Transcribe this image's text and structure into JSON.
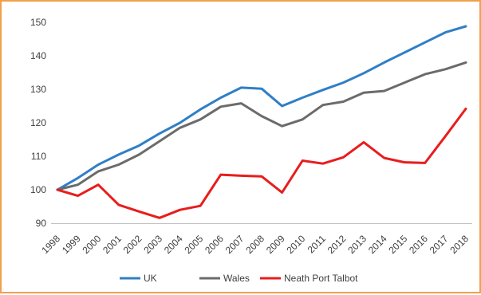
{
  "chart_data": {
    "type": "line",
    "categories": [
      "1998",
      "1999",
      "2000",
      "2001",
      "2002",
      "2003",
      "2004",
      "2005",
      "2006",
      "2007",
      "2008",
      "2009",
      "2010",
      "2011",
      "2012",
      "2013",
      "2014",
      "2015",
      "2016",
      "2017",
      "2018"
    ],
    "series": [
      {
        "name": "UK",
        "color": "#2f7fc6",
        "values": [
          100,
          103.5,
          107.5,
          110.5,
          113.2,
          116.8,
          120,
          124,
          127.5,
          130.5,
          130.2,
          125,
          127.5,
          129.8,
          132,
          134.8,
          138,
          141,
          144,
          147,
          148.8
        ]
      },
      {
        "name": "Wales",
        "color": "#6b6b6b",
        "values": [
          100,
          101.5,
          105.5,
          107.5,
          110.5,
          114.5,
          118.5,
          121,
          124.8,
          125.8,
          122,
          119,
          121,
          125.3,
          126.3,
          129,
          129.5,
          132,
          134.5,
          136,
          138
        ]
      },
      {
        "name": "Neath Port Talbot",
        "color": "#e81d1d",
        "values": [
          100,
          98.2,
          101.5,
          95.5,
          93.5,
          91.6,
          94,
          95.2,
          104.5,
          104.2,
          104,
          99.2,
          108.7,
          107.8,
          109.7,
          114.2,
          109.5,
          108.2,
          108,
          116,
          124.2
        ]
      }
    ],
    "y_ticks": [
      "90",
      "100",
      "110",
      "120",
      "130",
      "140",
      "150"
    ],
    "ylim": [
      90,
      150
    ],
    "grid": false,
    "legend_position": "bottom"
  }
}
